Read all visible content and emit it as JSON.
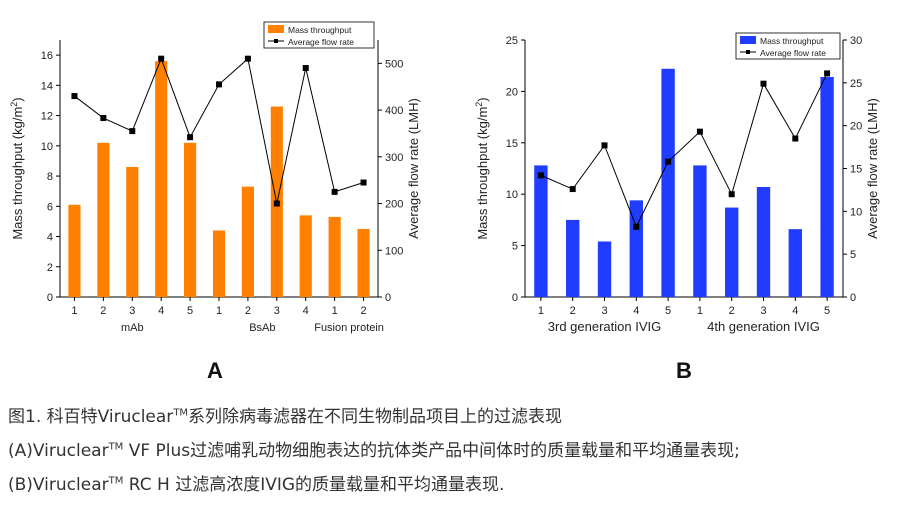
{
  "chart_data": [
    {
      "type": "bar",
      "panel": "A",
      "categories": [
        "1",
        "2",
        "3",
        "4",
        "5",
        "1",
        "2",
        "3",
        "4",
        "1",
        "2"
      ],
      "groups": [
        {
          "label": "mAb",
          "count": 5
        },
        {
          "label": "BsAb",
          "count": 4
        },
        {
          "label": "Fusion protein",
          "count": 2
        }
      ],
      "series": [
        {
          "name": "Mass throughput",
          "type": "bar",
          "axis": "left",
          "color": "#ff8000",
          "values": [
            6.1,
            10.2,
            8.6,
            15.6,
            10.2,
            4.4,
            7.3,
            12.6,
            5.4,
            5.3,
            4.5
          ]
        },
        {
          "name": "Average flow rate",
          "type": "line",
          "axis": "right",
          "color": "#000000",
          "values": [
            430,
            383,
            355,
            510,
            342,
            455,
            510,
            200,
            490,
            225,
            245
          ]
        }
      ],
      "ylabel_left_main": "Mass throughput (kg/m",
      "ylabel_left_sup": "2",
      "ylabel_left_end": ")",
      "ylabel_right": "Average flow rate (LMH)",
      "ylim_left": [
        0,
        17
      ],
      "yticks_left": [
        "0",
        "2",
        "4",
        "6",
        "8",
        "10",
        "12",
        "14",
        "16"
      ],
      "ylim_right": [
        0,
        550
      ],
      "yticks_right": [
        "0",
        "100",
        "200",
        "300",
        "400",
        "500"
      ],
      "legend_position": "top-right",
      "grid": false
    },
    {
      "type": "bar",
      "panel": "B",
      "categories": [
        "1",
        "2",
        "3",
        "4",
        "5",
        "1",
        "2",
        "3",
        "4",
        "5"
      ],
      "groups": [
        {
          "label": "3rd generation IVIG",
          "count": 5
        },
        {
          "label": "4th generation IVIG",
          "count": 5
        }
      ],
      "series": [
        {
          "name": "Mass throughput",
          "type": "bar",
          "axis": "left",
          "color": "#1f3cff",
          "values": [
            12.8,
            7.5,
            5.4,
            9.4,
            22.2,
            12.8,
            8.7,
            10.7,
            6.6,
            21.4
          ]
        },
        {
          "name": "Average flow rate",
          "type": "line",
          "axis": "right",
          "color": "#000000",
          "values": [
            14.2,
            12.6,
            17.7,
            8.2,
            15.8,
            19.3,
            12.0,
            24.9,
            18.5,
            26.1
          ]
        }
      ],
      "ylabel_left_main": "Mass throughput (kg/m",
      "ylabel_left_sup": "2",
      "ylabel_left_end": ")",
      "ylabel_right": "Average flow rate (LMH)",
      "ylim_left": [
        0,
        25
      ],
      "yticks_left": [
        "0",
        "5",
        "10",
        "15",
        "20",
        "25"
      ],
      "ylim_right": [
        0,
        30
      ],
      "yticks_right": [
        "0",
        "5",
        "10",
        "15",
        "20",
        "25",
        "30"
      ],
      "legend_position": "top-right",
      "grid": false
    }
  ],
  "panel_letters": {
    "a": "A",
    "b": "B"
  },
  "caption": {
    "line1_a": "图1. 科百特Viruclear",
    "line1_tm": "TM",
    "line1_b": "系列除病毒滤器在不同生物制品项目上的过滤表现",
    "line2_a": "(A)Viruclear",
    "line2_tm": "TM",
    "line2_b": " VF Plus过滤哺乳动物细胞表达的抗体类产品中间体时的质量载量和平均通量表现;",
    "line3_a": "(B)Viruclear",
    "line3_tm": "TM",
    "line3_b": " RC H 过滤高浓度IVIG的质量载量和平均通量表现."
  }
}
